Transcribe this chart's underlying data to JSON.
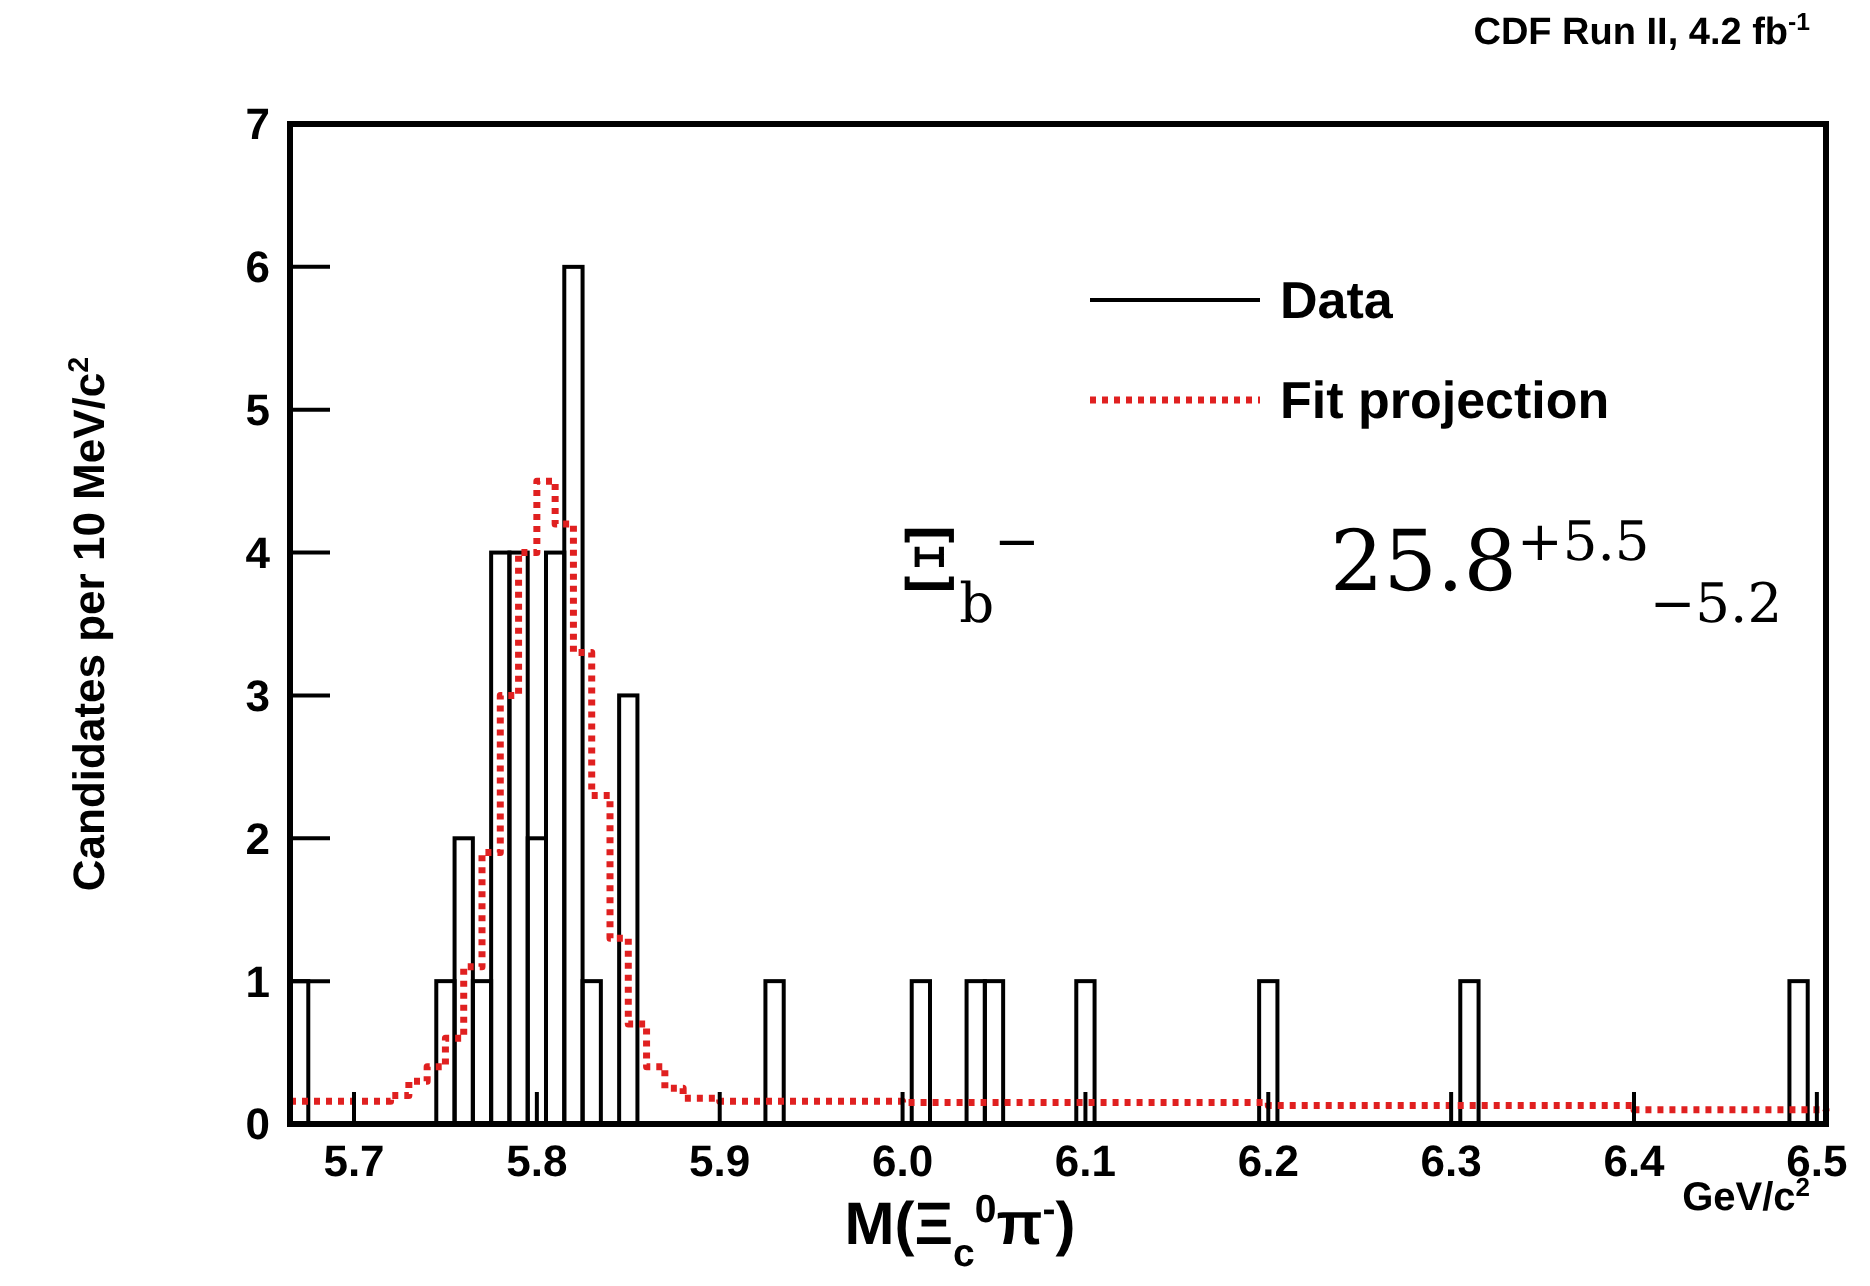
{
  "chart_data": {
    "type": "histogram",
    "title": "CDF Run II, 4.2 fb$^{-1}$",
    "xlabel": "M(Ξ$_{c}$$^{0}$π$^{-}$)",
    "ylabel": "Candidates per 10 MeV/c$^{2}$",
    "annotations": [
      "GeV/c$^{2}$",
      "Ξ$_{b}$$^{−}$",
      "25.8$^{+5.5}$$_{−5.2}$"
    ],
    "bins": [
      5.665,
      5.675,
      5.685,
      5.695,
      5.705,
      5.715,
      5.725,
      5.735,
      5.745,
      5.755,
      5.765,
      5.775,
      5.785,
      5.795,
      5.805,
      5.815,
      5.825,
      5.835,
      5.845,
      5.855,
      5.865,
      5.875,
      5.885,
      5.895,
      5.905,
      5.915,
      5.925,
      5.935,
      5.945,
      5.955,
      5.965,
      5.975,
      5.985,
      5.995,
      6.005,
      6.015,
      6.025,
      6.035,
      6.045,
      6.055,
      6.065,
      6.075,
      6.085,
      6.095,
      6.105,
      6.115,
      6.125,
      6.135,
      6.145,
      6.155,
      6.165,
      6.175,
      6.185,
      6.195,
      6.205,
      6.215,
      6.225,
      6.235,
      6.245,
      6.255,
      6.265,
      6.275,
      6.285,
      6.295,
      6.305,
      6.315,
      6.325,
      6.335,
      6.345,
      6.355,
      6.365,
      6.375,
      6.385,
      6.395,
      6.405,
      6.415,
      6.425,
      6.435,
      6.445,
      6.455,
      6.465,
      6.475,
      6.485,
      6.495,
      6.505
    ],
    "series": [
      {
        "name": "Data",
        "type": "histogram",
        "color": "#000000",
        "values": [
          1,
          0,
          0,
          0,
          0,
          0,
          0,
          0,
          1,
          2,
          1,
          4,
          4,
          2,
          4,
          6,
          1,
          0,
          3,
          0,
          0,
          0,
          0,
          0,
          0,
          0,
          1,
          0,
          0,
          0,
          0,
          0,
          0,
          0,
          1,
          0,
          0,
          1,
          1,
          0,
          0,
          0,
          0,
          1,
          0,
          0,
          0,
          0,
          0,
          0,
          0,
          0,
          0,
          1,
          0,
          0,
          0,
          0,
          0,
          0,
          0,
          0,
          0,
          0,
          1,
          0,
          0,
          0,
          0,
          0,
          0,
          0,
          0,
          0,
          0,
          0,
          0,
          0,
          0,
          0,
          0,
          0,
          1,
          0
        ]
      },
      {
        "name": "Fit projection",
        "type": "step",
        "color": "#e02020",
        "line_style": "dotted",
        "x": [
          5.665,
          5.7,
          5.72,
          5.73,
          5.74,
          5.75,
          5.76,
          5.77,
          5.78,
          5.79,
          5.8,
          5.81,
          5.82,
          5.83,
          5.84,
          5.85,
          5.86,
          5.87,
          5.88,
          5.9,
          6.0,
          6.2,
          6.4,
          6.505
        ],
        "values": [
          0.16,
          0.16,
          0.2,
          0.3,
          0.4,
          0.6,
          1.1,
          1.9,
          3.0,
          4.0,
          4.5,
          4.2,
          3.3,
          2.3,
          1.3,
          0.7,
          0.4,
          0.25,
          0.18,
          0.16,
          0.15,
          0.13,
          0.1,
          0.09
        ]
      }
    ],
    "xlim": [
      5.665,
      6.505
    ],
    "ylim": [
      0,
      7
    ],
    "xticks": [
      5.7,
      5.8,
      5.9,
      {
        "value": 6,
        "label": "6.0"
      },
      6.1,
      6.2,
      6.3,
      6.4,
      6.5
    ],
    "yticks": [
      0,
      1,
      2,
      3,
      4,
      5,
      6,
      7
    ],
    "legend": "top right",
    "grid": false
  }
}
